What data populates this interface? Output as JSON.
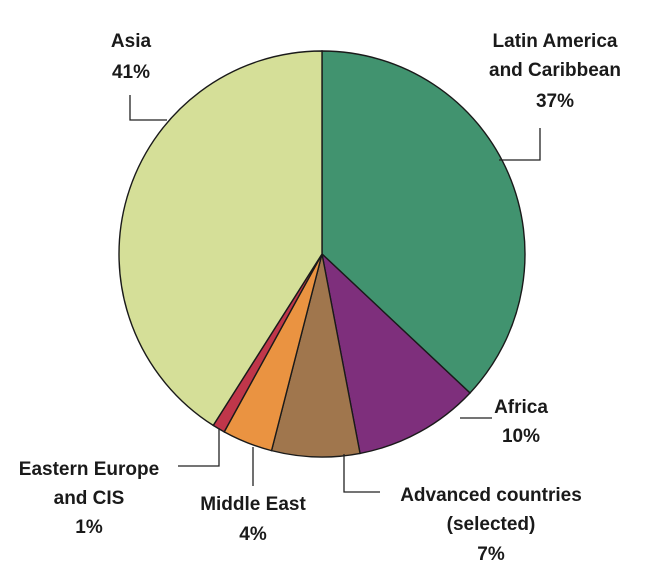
{
  "chart_data": {
    "type": "pie",
    "title": "",
    "slices": [
      {
        "name_lines": [
          "Latin America",
          "and Caribbean"
        ],
        "label": "37%",
        "value": 37,
        "color": "#41936f"
      },
      {
        "name_lines": [
          "Africa"
        ],
        "label": "10%",
        "value": 10,
        "color": "#7e2f7c"
      },
      {
        "name_lines": [
          "Advanced countries",
          "(selected)"
        ],
        "label": "7%",
        "value": 7,
        "color": "#a0764d"
      },
      {
        "name_lines": [
          "Middle East"
        ],
        "label": "4%",
        "value": 4,
        "color": "#ea9341"
      },
      {
        "name_lines": [
          "Eastern Europe",
          "and CIS"
        ],
        "label": "1%",
        "value": 1,
        "color": "#c0364a"
      },
      {
        "name_lines": [
          "Asia"
        ],
        "label": "41%",
        "value": 41,
        "color": "#d5df98"
      }
    ]
  }
}
